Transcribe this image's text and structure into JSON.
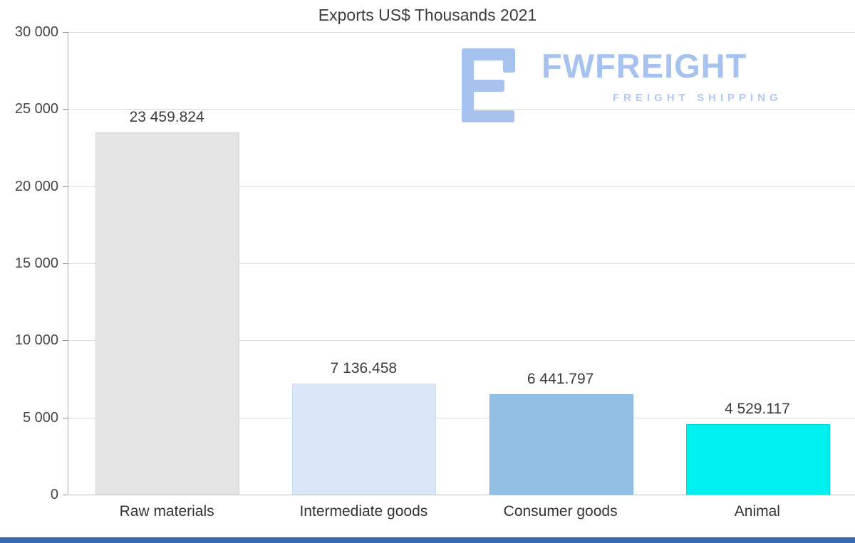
{
  "logo": {
    "brand": "FWFREIGHT",
    "tagline": "FREIGHT SHIPPING",
    "brand_color": "#a7c2ee",
    "tagline_color": "#b3c8f0",
    "icon": "fwfreight-f-mark"
  },
  "footer_color": "#3668ad",
  "chart_data": {
    "type": "bar",
    "title": "Exports US$ Thousands 2021",
    "categories": [
      "Raw materials",
      "Intermediate goods",
      "Consumer goods",
      "Animal"
    ],
    "values": [
      23459.824,
      7136.458,
      6441.797,
      4529.117
    ],
    "value_labels": [
      "23 459.824",
      "7 136.458",
      "6 441.797",
      "4 529.117"
    ],
    "bar_colors": [
      "#e4e4e4",
      "#d9e7f8",
      "#92bfe2",
      "#00f0f0"
    ],
    "bar_border_colors": [
      "#d6d6d6",
      "#c8dcf3",
      "#7bb0da",
      "#00dcdc"
    ],
    "xlabel": "",
    "ylabel": "",
    "ylim": [
      0,
      30000
    ],
    "yticks": [
      0,
      5000,
      10000,
      15000,
      20000,
      25000,
      30000
    ],
    "ytick_labels": [
      "0",
      "5 000",
      "10 000",
      "15 000",
      "20 000",
      "25 000",
      "30 000"
    ],
    "grid": true,
    "legend": false
  }
}
